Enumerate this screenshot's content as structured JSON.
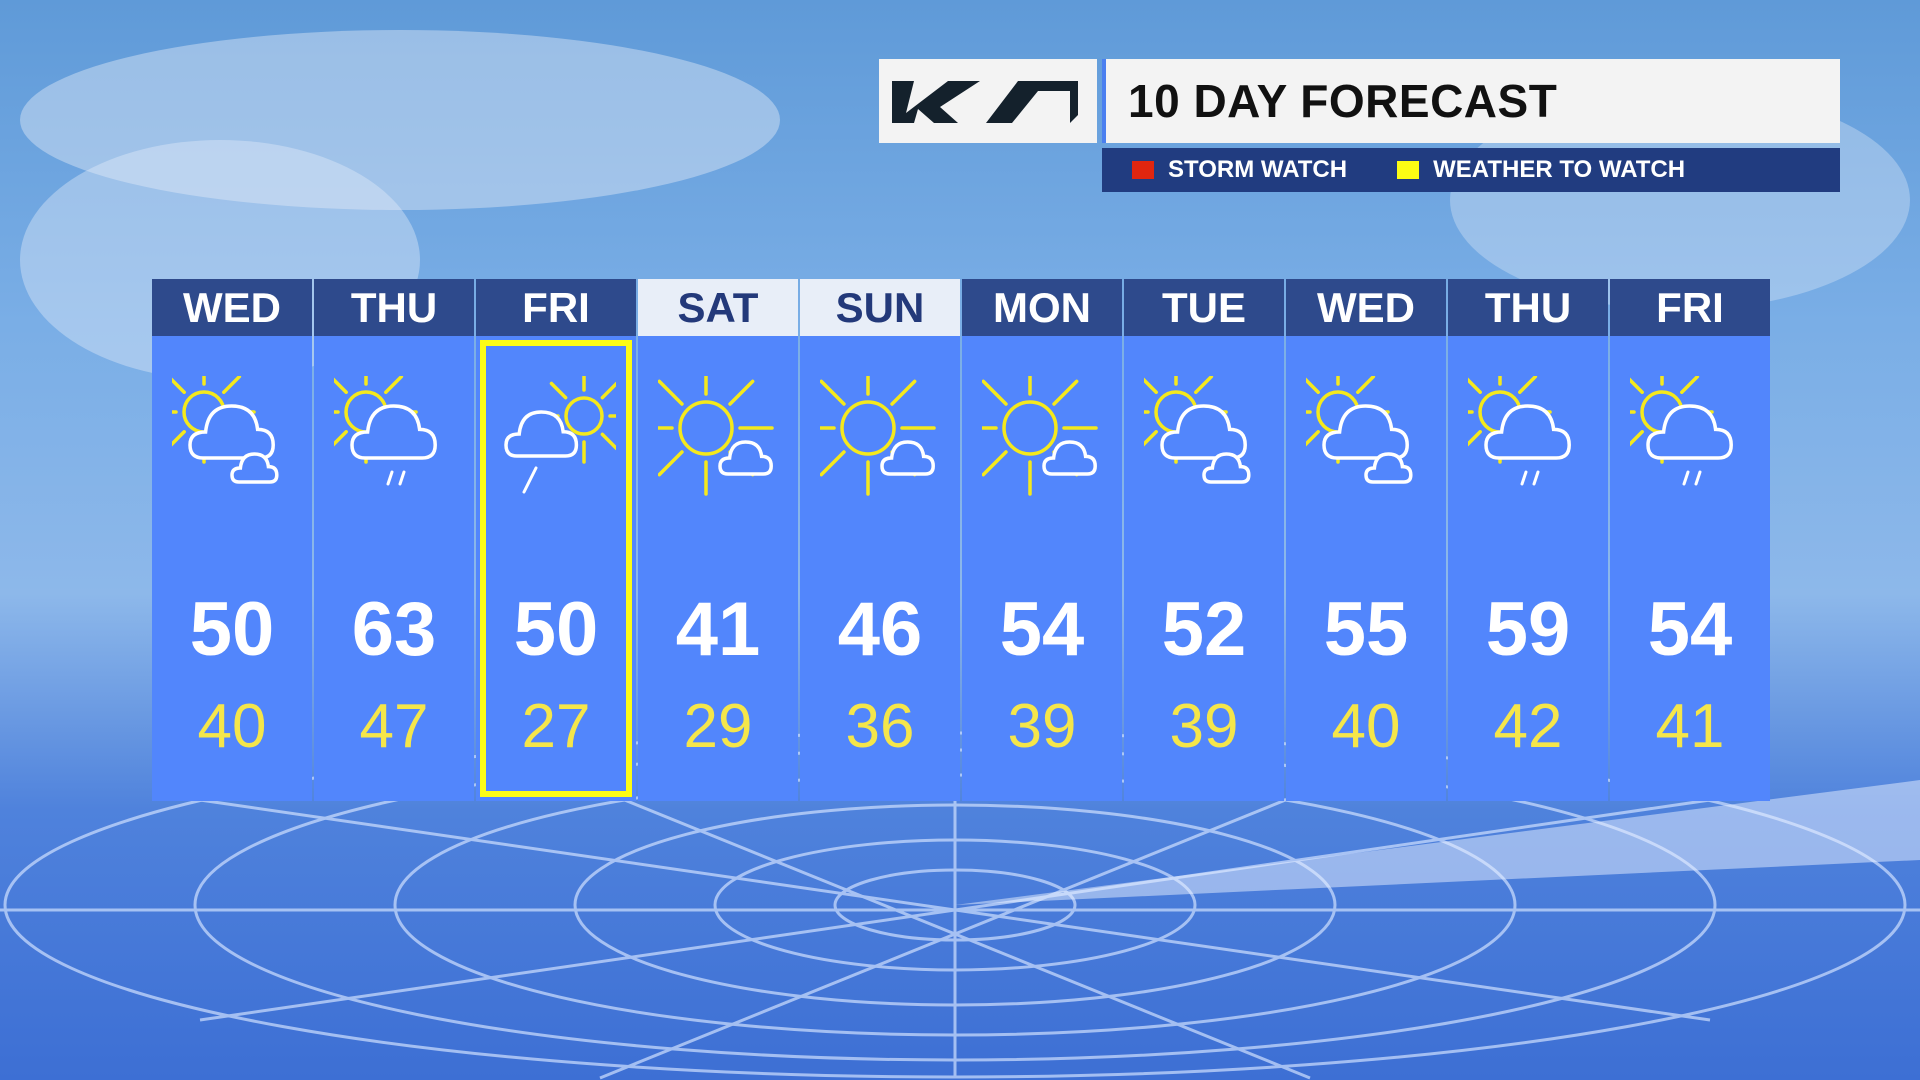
{
  "brand": "KIA",
  "title": "10 DAY FORECAST",
  "legend": [
    {
      "label": "STORM WATCH",
      "color": "#e0260f"
    },
    {
      "label": "WEATHER TO WATCH",
      "color": "#fcfc14"
    }
  ],
  "highlight_color": "#fcfc14",
  "days": [
    {
      "day": "WED",
      "high": "50",
      "low": "40",
      "icon": "partly-cloudy-icon",
      "weekend": false,
      "highlight": false,
      "rain": 0
    },
    {
      "day": "THU",
      "high": "63",
      "low": "47",
      "icon": "partly-cloudy-showers-icon",
      "weekend": false,
      "highlight": false,
      "rain": 2
    },
    {
      "day": "FRI",
      "high": "50",
      "low": "27",
      "icon": "cloudy-sun-rain-icon",
      "weekend": false,
      "highlight": true,
      "rain": 1
    },
    {
      "day": "SAT",
      "high": "41",
      "low": "29",
      "icon": "mostly-sunny-icon",
      "weekend": true,
      "highlight": false,
      "rain": 0
    },
    {
      "day": "SUN",
      "high": "46",
      "low": "36",
      "icon": "mostly-sunny-icon",
      "weekend": true,
      "highlight": false,
      "rain": 0
    },
    {
      "day": "MON",
      "high": "54",
      "low": "39",
      "icon": "mostly-sunny-icon",
      "weekend": false,
      "highlight": false,
      "rain": 0
    },
    {
      "day": "TUE",
      "high": "52",
      "low": "39",
      "icon": "partly-cloudy-icon",
      "weekend": false,
      "highlight": false,
      "rain": 0
    },
    {
      "day": "WED",
      "high": "55",
      "low": "40",
      "icon": "partly-cloudy-icon",
      "weekend": false,
      "highlight": false,
      "rain": 0
    },
    {
      "day": "THU",
      "high": "59",
      "low": "42",
      "icon": "partly-cloudy-rain-icon",
      "weekend": false,
      "highlight": false,
      "rain": 2
    },
    {
      "day": "FRI",
      "high": "54",
      "low": "41",
      "icon": "partly-cloudy-drizzle-icon",
      "weekend": false,
      "highlight": false,
      "rain": 2
    }
  ]
}
